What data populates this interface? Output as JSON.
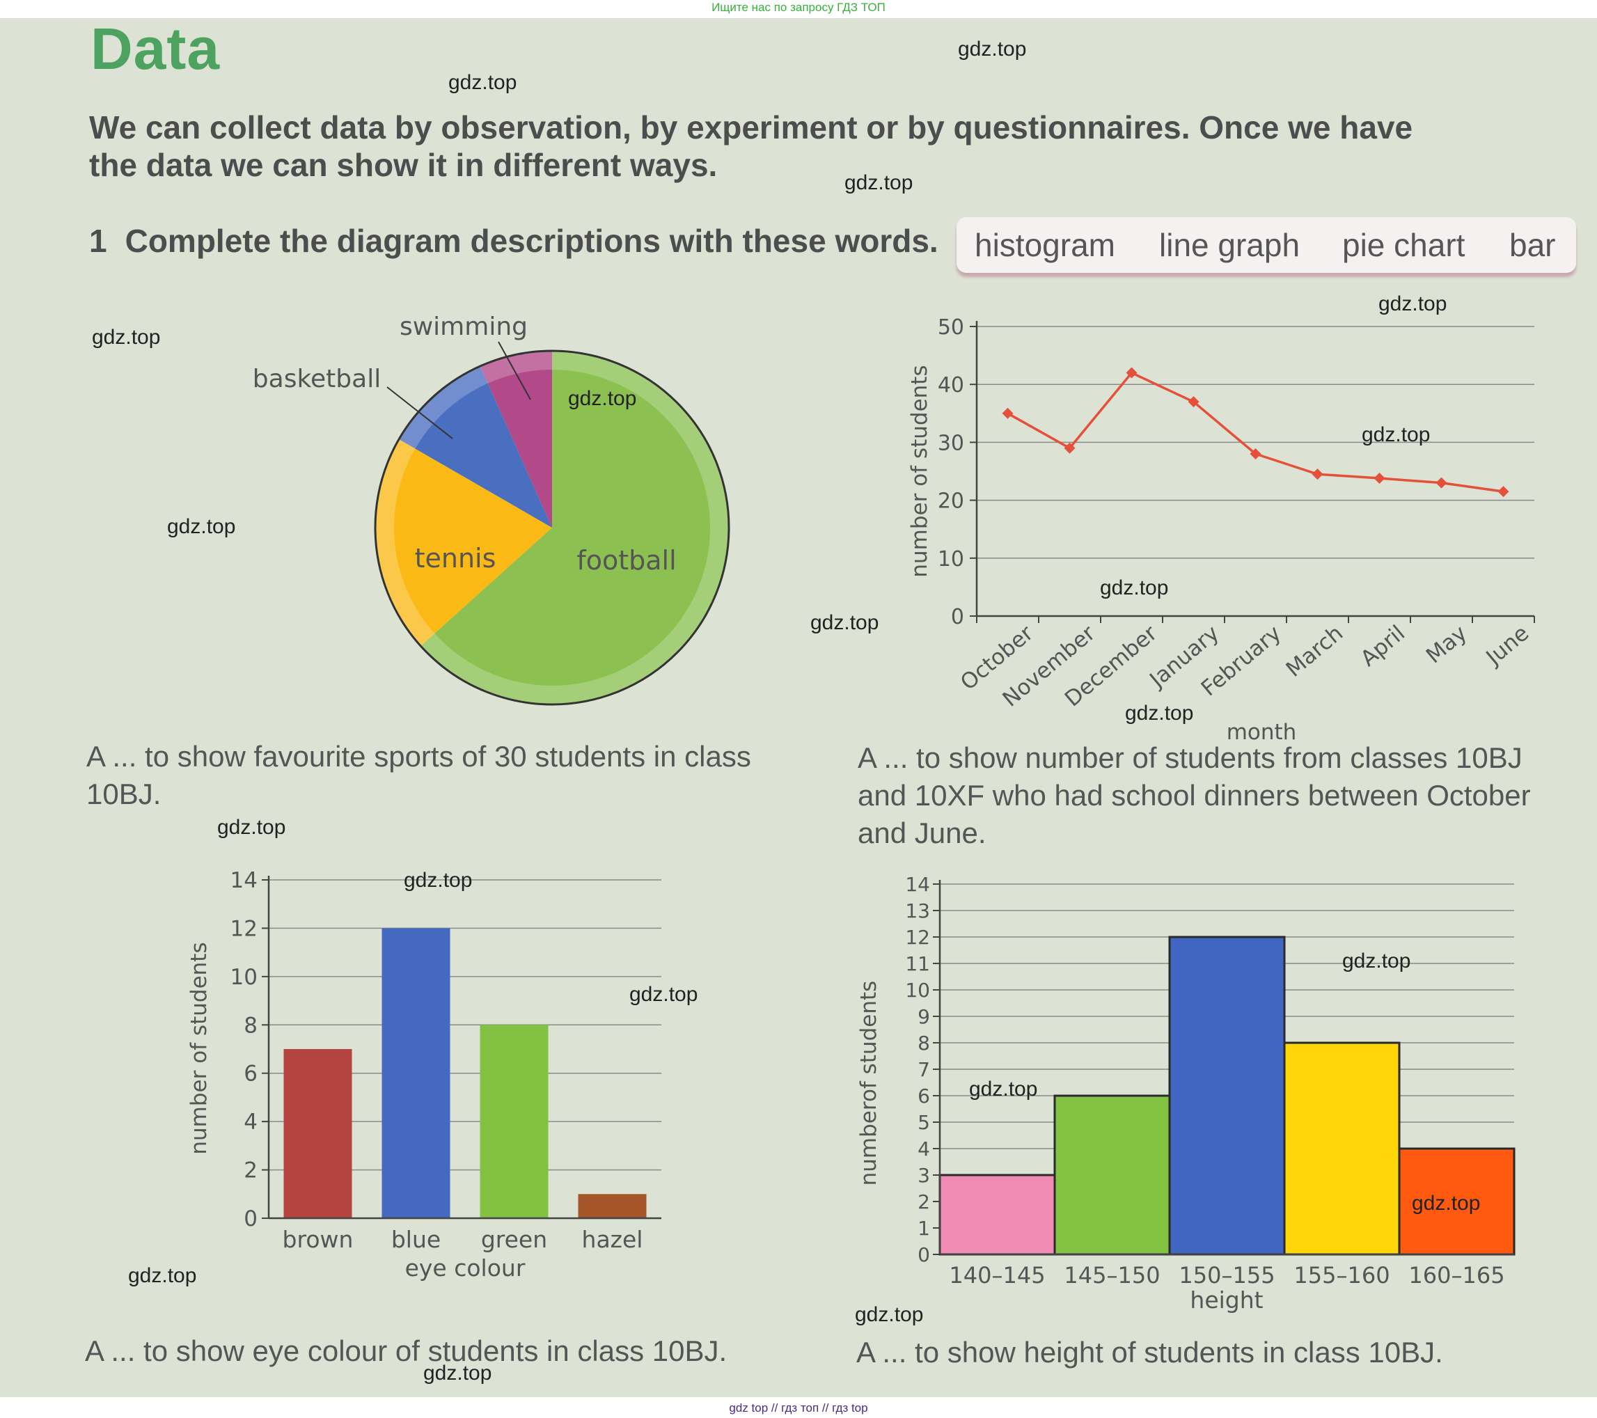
{
  "header_note": "Ищите нас по запросу ГДЗ ТОП",
  "footer_note": "gdz top  //  гдз топ  //  гдз top",
  "title": "Data",
  "intro": "We can collect data by observation, by experiment or by questionnaires. Once we have the data we can show it in different ways.",
  "task": {
    "number": "1",
    "text": "Complete the diagram descriptions with these words."
  },
  "word_box": [
    "histogram",
    "line graph",
    "pie chart",
    "bar"
  ],
  "captions": {
    "pie": "A ... to show favourite sports of 30 students in class 10BJ.",
    "line": "A ... to show number of students from classes 10BJ and 10XF who had school dinners between October and June.",
    "bar": "A ... to show eye colour of students in class 10BJ.",
    "histogram": "A ... to show height of students in class 10BJ."
  },
  "watermark": "gdz.top",
  "colors": {
    "football": "#8cc152",
    "tennis": "#fbb916",
    "basketball": "#4b6fc0",
    "swimming": "#b24a8a",
    "line": "#e4503a",
    "brown": "#b5433f",
    "blue": "#4569c0",
    "green": "#83c143",
    "hazel": "#a6552a",
    "h1": "#f08bb3",
    "h2": "#84c244",
    "h3": "#4166c2",
    "h4": "#ffd60a",
    "h5": "#ff5a10"
  },
  "chart_data": [
    {
      "type": "pie",
      "categories": [
        "football",
        "tennis",
        "basketball",
        "swimming"
      ],
      "values": [
        19,
        6,
        3,
        2
      ],
      "labels": [
        "football",
        "tennis",
        "basketball",
        "swimming"
      ]
    },
    {
      "type": "line",
      "x": [
        "October",
        "November",
        "December",
        "January",
        "February",
        "March",
        "April",
        "May",
        "June"
      ],
      "values": [
        35,
        29,
        42,
        37,
        28,
        24.5,
        23.8,
        23,
        21.5
      ],
      "xlabel": "month",
      "ylabel": "number of students",
      "ylim": [
        0,
        50
      ],
      "yticks": [
        0,
        10,
        20,
        30,
        40,
        50
      ],
      "grid": true
    },
    {
      "type": "bar",
      "categories": [
        "brown",
        "blue",
        "green",
        "hazel"
      ],
      "values": [
        7,
        12,
        8,
        1
      ],
      "xlabel": "eye colour",
      "ylabel": "number of students",
      "ylim": [
        0,
        14
      ],
      "yticks": [
        0,
        2,
        4,
        6,
        8,
        10,
        12,
        14
      ],
      "grid": true
    },
    {
      "type": "bar",
      "subtype": "histogram",
      "categories": [
        "140–145",
        "145–150",
        "150–155",
        "155–160",
        "160–165"
      ],
      "values": [
        3,
        6,
        12,
        8,
        4
      ],
      "xlabel": "height",
      "ylabel": "numberof students",
      "ylim": [
        0,
        14
      ],
      "yticks": [
        0,
        1,
        2,
        3,
        4,
        5,
        6,
        7,
        8,
        9,
        10,
        11,
        12,
        13,
        14
      ],
      "grid": true
    }
  ]
}
